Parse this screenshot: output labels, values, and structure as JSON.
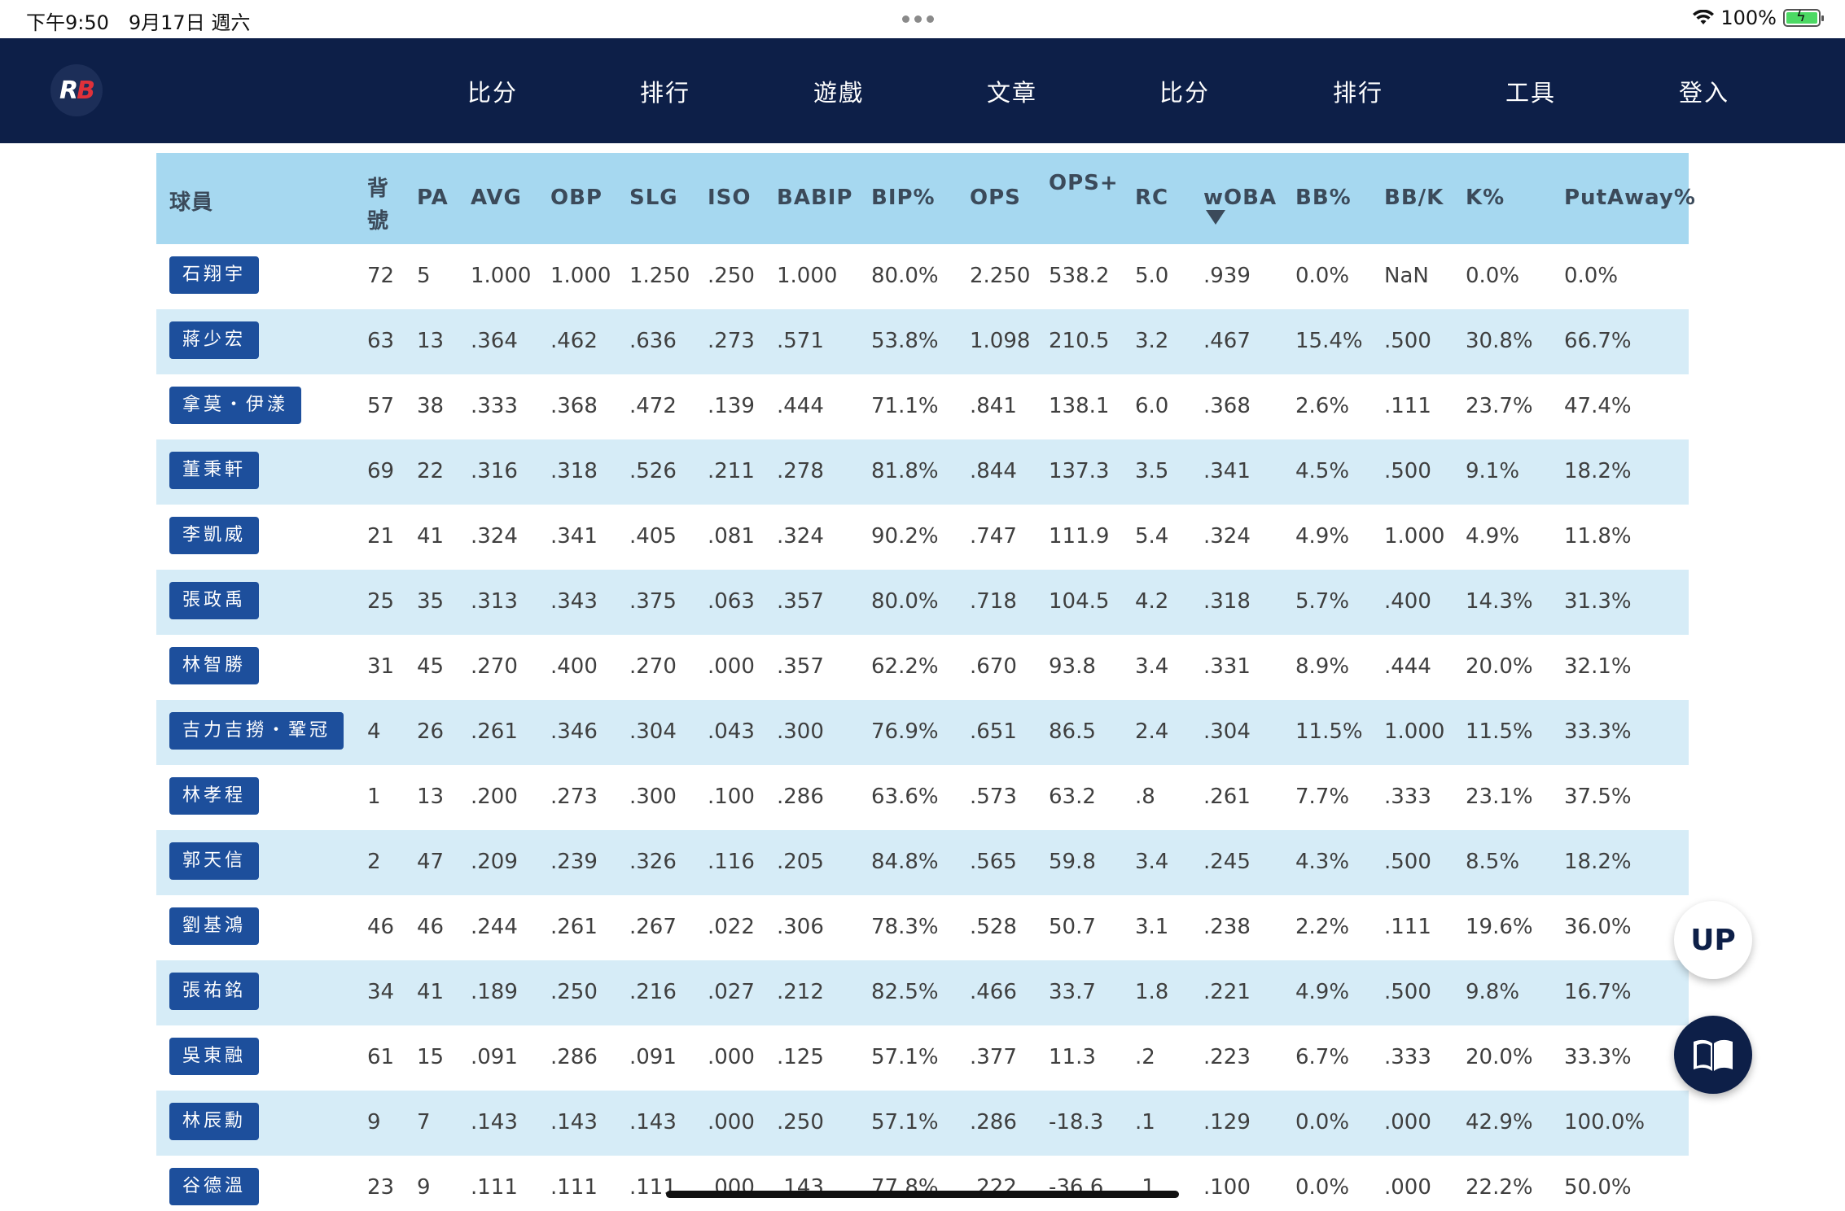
{
  "status_bar": {
    "time": "下午9:50　9月17日 週六",
    "battery": "100%"
  },
  "nav": {
    "logo": "RB",
    "items": [
      "比分",
      "排行",
      "遊戲",
      "文章",
      "比分",
      "排行",
      "工具",
      "登入"
    ]
  },
  "table": {
    "headers": {
      "player": "球員",
      "number": "背號",
      "pa": "PA",
      "avg": "AVG",
      "obp": "OBP",
      "slg": "SLG",
      "iso": "ISO",
      "babip": "BABIP",
      "bip": "BIP%",
      "ops": "OPS",
      "ops_plus": "OPS+",
      "rc": "RC",
      "woba": "wOBA",
      "bb_pct": "BB%",
      "bb_k": "BB/K",
      "k_pct": "K%",
      "putaway": "PutAway%"
    },
    "rows": [
      {
        "name": "石翔宇",
        "no": "72",
        "pa": "5",
        "avg": "1.000",
        "obp": "1.000",
        "slg": "1.250",
        "iso": ".250",
        "babip": "1.000",
        "bip": "80.0%",
        "ops": "2.250",
        "ops_plus": "538.2",
        "rc": "5.0",
        "woba": ".939",
        "bb_pct": "0.0%",
        "bb_k": "NaN",
        "k_pct": "0.0%",
        "putaway": "0.0%"
      },
      {
        "name": "蔣少宏",
        "no": "63",
        "pa": "13",
        "avg": ".364",
        "obp": ".462",
        "slg": ".636",
        "iso": ".273",
        "babip": ".571",
        "bip": "53.8%",
        "ops": "1.098",
        "ops_plus": "210.5",
        "rc": "3.2",
        "woba": ".467",
        "bb_pct": "15.4%",
        "bb_k": ".500",
        "k_pct": "30.8%",
        "putaway": "66.7%"
      },
      {
        "name": "拿莫・伊漾",
        "no": "57",
        "pa": "38",
        "avg": ".333",
        "obp": ".368",
        "slg": ".472",
        "iso": ".139",
        "babip": ".444",
        "bip": "71.1%",
        "ops": ".841",
        "ops_plus": "138.1",
        "rc": "6.0",
        "woba": ".368",
        "bb_pct": "2.6%",
        "bb_k": ".111",
        "k_pct": "23.7%",
        "putaway": "47.4%"
      },
      {
        "name": "董秉軒",
        "no": "69",
        "pa": "22",
        "avg": ".316",
        "obp": ".318",
        "slg": ".526",
        "iso": ".211",
        "babip": ".278",
        "bip": "81.8%",
        "ops": ".844",
        "ops_plus": "137.3",
        "rc": "3.5",
        "woba": ".341",
        "bb_pct": "4.5%",
        "bb_k": ".500",
        "k_pct": "9.1%",
        "putaway": "18.2%"
      },
      {
        "name": "李凱威",
        "no": "21",
        "pa": "41",
        "avg": ".324",
        "obp": ".341",
        "slg": ".405",
        "iso": ".081",
        "babip": ".324",
        "bip": "90.2%",
        "ops": ".747",
        "ops_plus": "111.9",
        "rc": "5.4",
        "woba": ".324",
        "bb_pct": "4.9%",
        "bb_k": "1.000",
        "k_pct": "4.9%",
        "putaway": "11.8%"
      },
      {
        "name": "張政禹",
        "no": "25",
        "pa": "35",
        "avg": ".313",
        "obp": ".343",
        "slg": ".375",
        "iso": ".063",
        "babip": ".357",
        "bip": "80.0%",
        "ops": ".718",
        "ops_plus": "104.5",
        "rc": "4.2",
        "woba": ".318",
        "bb_pct": "5.7%",
        "bb_k": ".400",
        "k_pct": "14.3%",
        "putaway": "31.3%"
      },
      {
        "name": "林智勝",
        "no": "31",
        "pa": "45",
        "avg": ".270",
        "obp": ".400",
        "slg": ".270",
        "iso": ".000",
        "babip": ".357",
        "bip": "62.2%",
        "ops": ".670",
        "ops_plus": "93.8",
        "rc": "3.4",
        "woba": ".331",
        "bb_pct": "8.9%",
        "bb_k": ".444",
        "k_pct": "20.0%",
        "putaway": "32.1%"
      },
      {
        "name": "吉力吉撈・鞏冠",
        "no": "4",
        "pa": "26",
        "avg": ".261",
        "obp": ".346",
        "slg": ".304",
        "iso": ".043",
        "babip": ".300",
        "bip": "76.9%",
        "ops": ".651",
        "ops_plus": "86.5",
        "rc": "2.4",
        "woba": ".304",
        "bb_pct": "11.5%",
        "bb_k": "1.000",
        "k_pct": "11.5%",
        "putaway": "33.3%"
      },
      {
        "name": "林孝程",
        "no": "1",
        "pa": "13",
        "avg": ".200",
        "obp": ".273",
        "slg": ".300",
        "iso": ".100",
        "babip": ".286",
        "bip": "63.6%",
        "ops": ".573",
        "ops_plus": "63.2",
        "rc": ".8",
        "woba": ".261",
        "bb_pct": "7.7%",
        "bb_k": ".333",
        "k_pct": "23.1%",
        "putaway": "37.5%"
      },
      {
        "name": "郭天信",
        "no": "2",
        "pa": "47",
        "avg": ".209",
        "obp": ".239",
        "slg": ".326",
        "iso": ".116",
        "babip": ".205",
        "bip": "84.8%",
        "ops": ".565",
        "ops_plus": "59.8",
        "rc": "3.4",
        "woba": ".245",
        "bb_pct": "4.3%",
        "bb_k": ".500",
        "k_pct": "8.5%",
        "putaway": "18.2%"
      },
      {
        "name": "劉基鴻",
        "no": "46",
        "pa": "46",
        "avg": ".244",
        "obp": ".261",
        "slg": ".267",
        "iso": ".022",
        "babip": ".306",
        "bip": "78.3%",
        "ops": ".528",
        "ops_plus": "50.7",
        "rc": "3.1",
        "woba": ".238",
        "bb_pct": "2.2%",
        "bb_k": ".111",
        "k_pct": "19.6%",
        "putaway": "36.0%"
      },
      {
        "name": "張祐銘",
        "no": "34",
        "pa": "41",
        "avg": ".189",
        "obp": ".250",
        "slg": ".216",
        "iso": ".027",
        "babip": ".212",
        "bip": "82.5%",
        "ops": ".466",
        "ops_plus": "33.7",
        "rc": "1.8",
        "woba": ".221",
        "bb_pct": "4.9%",
        "bb_k": ".500",
        "k_pct": "9.8%",
        "putaway": "16.7%"
      },
      {
        "name": "吳東融",
        "no": "61",
        "pa": "15",
        "avg": ".091",
        "obp": ".286",
        "slg": ".091",
        "iso": ".000",
        "babip": ".125",
        "bip": "57.1%",
        "ops": ".377",
        "ops_plus": "11.3",
        "rc": ".2",
        "woba": ".223",
        "bb_pct": "6.7%",
        "bb_k": ".333",
        "k_pct": "20.0%",
        "putaway": "33.3%"
      },
      {
        "name": "林辰勳",
        "no": "9",
        "pa": "7",
        "avg": ".143",
        "obp": ".143",
        "slg": ".143",
        "iso": ".000",
        "babip": ".250",
        "bip": "57.1%",
        "ops": ".286",
        "ops_plus": "-18.3",
        "rc": ".1",
        "woba": ".129",
        "bb_pct": "0.0%",
        "bb_k": ".000",
        "k_pct": "42.9%",
        "putaway": "100.0%"
      },
      {
        "name": "谷德溫",
        "no": "23",
        "pa": "9",
        "avg": ".111",
        "obp": ".111",
        "slg": ".111",
        "iso": ".000",
        "babip": ".143",
        "bip": "77.8%",
        "ops": ".222",
        "ops_plus": "-36.6",
        "rc": ".1",
        "woba": ".100",
        "bb_pct": "0.0%",
        "bb_k": ".000",
        "k_pct": "22.2%",
        "putaway": "50.0%"
      }
    ]
  },
  "floating": {
    "up_label": "UP"
  }
}
